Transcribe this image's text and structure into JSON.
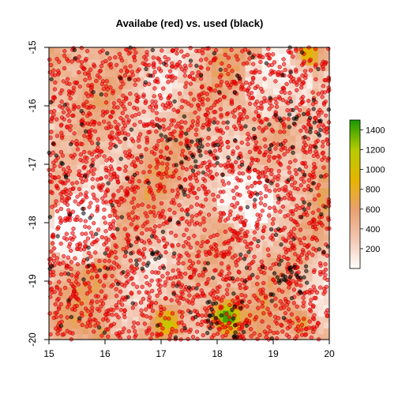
{
  "chart_data": {
    "type": "scatter",
    "title": "Availabe (red) vs. used (black)",
    "xlabel": "",
    "ylabel": "",
    "xlim": [
      15,
      20
    ],
    "ylim": [
      -20,
      -15
    ],
    "x_ticks": [
      15,
      16,
      17,
      18,
      19,
      20
    ],
    "y_ticks": [
      -15,
      -16,
      -17,
      -18,
      -19,
      -20
    ],
    "grid": false,
    "background_raster": {
      "type": "heatmap",
      "legend": "colorbar-right",
      "color_ticks": [
        200,
        400,
        600,
        800,
        1000,
        1200,
        1400
      ],
      "color_range": [
        0,
        1500
      ],
      "palette": [
        "#ffffff",
        "#f2c7b2",
        "#e8a070",
        "#e6b400",
        "#b8cc00",
        "#1a9a00"
      ],
      "extremes": [
        {
          "x": 15.9,
          "y": -19.9,
          "value": 700
        },
        {
          "x": 17.1,
          "y": -19.7,
          "value": 1100
        },
        {
          "x": 18.15,
          "y": -19.6,
          "value": 1500
        },
        {
          "x": 19.6,
          "y": -15.1,
          "value": 1000
        },
        {
          "x": 19.5,
          "y": -19.7,
          "value": 900
        }
      ]
    },
    "series": [
      {
        "name": "Availabe",
        "color": "#ff0000",
        "n_points": 2600,
        "x_range": [
          15,
          20
        ],
        "y_range": [
          -20,
          -15
        ]
      },
      {
        "name": "used",
        "color": "#000000",
        "n_points": 300,
        "x_range": [
          15,
          20
        ],
        "y_range": [
          -20,
          -15
        ],
        "clusters": [
          {
            "x": 16.7,
            "y": -18.5
          },
          {
            "x": 17.4,
            "y": -16.8
          },
          {
            "x": 18.2,
            "y": -19.7
          },
          {
            "x": 19.6,
            "y": -16.2
          },
          {
            "x": 19.3,
            "y": -19.0
          }
        ]
      }
    ]
  }
}
